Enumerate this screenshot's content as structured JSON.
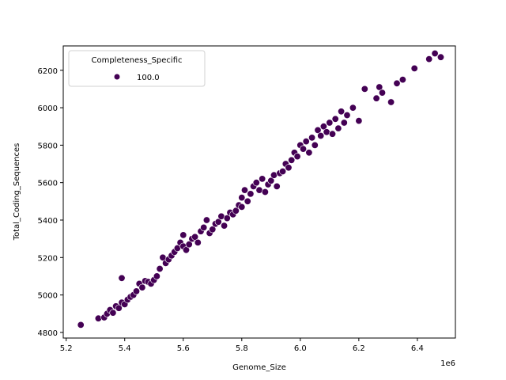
{
  "chart_data": {
    "type": "scatter",
    "title": "",
    "xlabel": "Genome_Size",
    "ylabel": "Total_Coding_Sequences",
    "x_offset_label": "1e6",
    "xlim": [
      5.19,
      6.53
    ],
    "ylim": [
      4770,
      6330
    ],
    "x_ticks": [
      5.2,
      5.4,
      5.6,
      5.8,
      6.0,
      6.2,
      6.4
    ],
    "x_tick_labels": [
      "5.2",
      "5.4",
      "5.6",
      "5.8",
      "6.0",
      "6.2",
      "6.4"
    ],
    "y_ticks": [
      4800,
      5000,
      5200,
      5400,
      5600,
      5800,
      6000,
      6200
    ],
    "y_tick_labels": [
      "4800",
      "5000",
      "5200",
      "5400",
      "5600",
      "5800",
      "6000",
      "6200"
    ],
    "grid": false,
    "legend": {
      "title": "Completeness_Specific",
      "position": "upper left",
      "entries": [
        {
          "label": "100.0",
          "color": "#440154"
        }
      ]
    },
    "series": [
      {
        "name": "100.0",
        "color": "#440154",
        "points": [
          [
            5.25,
            4840
          ],
          [
            5.31,
            4875
          ],
          [
            5.33,
            4880
          ],
          [
            5.34,
            4900
          ],
          [
            5.35,
            4920
          ],
          [
            5.36,
            4905
          ],
          [
            5.37,
            4940
          ],
          [
            5.38,
            4930
          ],
          [
            5.39,
            5090
          ],
          [
            5.39,
            4960
          ],
          [
            5.4,
            4950
          ],
          [
            5.41,
            4975
          ],
          [
            5.42,
            4990
          ],
          [
            5.43,
            5000
          ],
          [
            5.44,
            5020
          ],
          [
            5.45,
            5060
          ],
          [
            5.46,
            5040
          ],
          [
            5.47,
            5075
          ],
          [
            5.48,
            5070
          ],
          [
            5.49,
            5060
          ],
          [
            5.5,
            5080
          ],
          [
            5.51,
            5100
          ],
          [
            5.52,
            5140
          ],
          [
            5.53,
            5200
          ],
          [
            5.54,
            5170
          ],
          [
            5.55,
            5190
          ],
          [
            5.56,
            5210
          ],
          [
            5.57,
            5230
          ],
          [
            5.58,
            5250
          ],
          [
            5.59,
            5280
          ],
          [
            5.6,
            5320
          ],
          [
            5.6,
            5260
          ],
          [
            5.61,
            5240
          ],
          [
            5.62,
            5270
          ],
          [
            5.63,
            5300
          ],
          [
            5.64,
            5310
          ],
          [
            5.65,
            5280
          ],
          [
            5.66,
            5340
          ],
          [
            5.67,
            5360
          ],
          [
            5.68,
            5400
          ],
          [
            5.69,
            5330
          ],
          [
            5.7,
            5350
          ],
          [
            5.71,
            5380
          ],
          [
            5.72,
            5390
          ],
          [
            5.73,
            5420
          ],
          [
            5.74,
            5370
          ],
          [
            5.75,
            5410
          ],
          [
            5.76,
            5440
          ],
          [
            5.77,
            5430
          ],
          [
            5.78,
            5450
          ],
          [
            5.79,
            5480
          ],
          [
            5.8,
            5520
          ],
          [
            5.8,
            5470
          ],
          [
            5.81,
            5560
          ],
          [
            5.82,
            5500
          ],
          [
            5.83,
            5540
          ],
          [
            5.84,
            5580
          ],
          [
            5.85,
            5600
          ],
          [
            5.86,
            5560
          ],
          [
            5.87,
            5620
          ],
          [
            5.88,
            5550
          ],
          [
            5.89,
            5590
          ],
          [
            5.9,
            5610
          ],
          [
            5.91,
            5640
          ],
          [
            5.92,
            5580
          ],
          [
            5.93,
            5650
          ],
          [
            5.94,
            5660
          ],
          [
            5.95,
            5700
          ],
          [
            5.96,
            5680
          ],
          [
            5.97,
            5720
          ],
          [
            5.98,
            5760
          ],
          [
            5.99,
            5740
          ],
          [
            6.0,
            5800
          ],
          [
            6.01,
            5780
          ],
          [
            6.02,
            5820
          ],
          [
            6.03,
            5760
          ],
          [
            6.04,
            5840
          ],
          [
            6.05,
            5800
          ],
          [
            6.06,
            5880
          ],
          [
            6.07,
            5850
          ],
          [
            6.08,
            5900
          ],
          [
            6.09,
            5870
          ],
          [
            6.1,
            5920
          ],
          [
            6.11,
            5860
          ],
          [
            6.12,
            5940
          ],
          [
            6.13,
            5890
          ],
          [
            6.14,
            5980
          ],
          [
            6.15,
            5920
          ],
          [
            6.16,
            5960
          ],
          [
            6.18,
            6000
          ],
          [
            6.2,
            5930
          ],
          [
            6.22,
            6100
          ],
          [
            6.26,
            6050
          ],
          [
            6.27,
            6110
          ],
          [
            6.28,
            6080
          ],
          [
            6.31,
            6030
          ],
          [
            6.33,
            6130
          ],
          [
            6.35,
            6150
          ],
          [
            6.39,
            6210
          ],
          [
            6.44,
            6260
          ],
          [
            6.46,
            6290
          ],
          [
            6.48,
            6270
          ]
        ]
      }
    ]
  }
}
